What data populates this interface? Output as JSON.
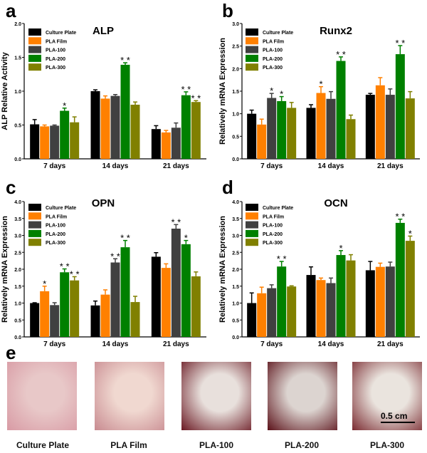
{
  "colors": {
    "Culture Plate": "#000000",
    "PLA Film": "#ff8000",
    "PLA-100": "#404040",
    "PLA-200": "#008000",
    "PLA-300": "#808000"
  },
  "chart_data": [
    {
      "panel": "a",
      "type": "bar",
      "title": "ALP",
      "ylabel": "ALP Relative Activity",
      "xlabel": "",
      "ylim": [
        0,
        2.0
      ],
      "yticks": [
        0.0,
        0.5,
        1.0,
        1.5,
        2.0
      ],
      "tick_decimals": 1,
      "categories": [
        "7 days",
        "14 days",
        "21 days"
      ],
      "legend_placement": "top-left",
      "series": [
        {
          "name": "Culture Plate",
          "values": [
            0.51,
            1.0,
            0.44
          ],
          "errors": [
            0.07,
            0.02,
            0.05
          ],
          "sig": [
            "",
            "",
            ""
          ]
        },
        {
          "name": "PLA Film",
          "values": [
            0.48,
            0.89,
            0.39
          ],
          "errors": [
            0.02,
            0.04,
            0.03
          ],
          "sig": [
            "",
            "",
            ""
          ]
        },
        {
          "name": "PLA-100",
          "values": [
            0.49,
            0.93,
            0.46
          ],
          "errors": [
            0.01,
            0.02,
            0.07
          ],
          "sig": [
            "",
            "",
            ""
          ]
        },
        {
          "name": "PLA-200",
          "values": [
            0.71,
            1.39,
            0.94
          ],
          "errors": [
            0.04,
            0.03,
            0.05
          ],
          "sig": [
            "*",
            "**",
            "**"
          ]
        },
        {
          "name": "PLA-300",
          "values": [
            0.54,
            0.8,
            0.84
          ],
          "errors": [
            0.08,
            0.04,
            0.02
          ],
          "sig": [
            "",
            "",
            "**"
          ]
        }
      ]
    },
    {
      "panel": "b",
      "type": "bar",
      "title": "Runx2",
      "ylabel": "Relatively mRNA Expression",
      "xlabel": "",
      "ylim": [
        0,
        3.0
      ],
      "yticks": [
        0.0,
        0.5,
        1.0,
        1.5,
        2.0,
        2.5,
        3.0
      ],
      "tick_decimals": 1,
      "categories": [
        "7 days",
        "14 days",
        "21 days"
      ],
      "legend_placement": "top-left",
      "series": [
        {
          "name": "Culture Plate",
          "values": [
            1.0,
            1.13,
            1.42
          ],
          "errors": [
            0.08,
            0.07,
            0.03
          ],
          "sig": [
            "",
            "",
            ""
          ]
        },
        {
          "name": "PLA Film",
          "values": [
            0.76,
            1.46,
            1.63
          ],
          "errors": [
            0.12,
            0.14,
            0.17
          ],
          "sig": [
            "",
            "*",
            ""
          ]
        },
        {
          "name": "PLA-100",
          "values": [
            1.35,
            1.33,
            1.42
          ],
          "errors": [
            0.1,
            0.16,
            0.13
          ],
          "sig": [
            "*",
            "",
            ""
          ]
        },
        {
          "name": "PLA-200",
          "values": [
            1.28,
            2.17,
            2.32
          ],
          "errors": [
            0.1,
            0.09,
            0.19
          ],
          "sig": [
            "*",
            "**",
            "**"
          ]
        },
        {
          "name": "PLA-300",
          "values": [
            1.13,
            0.88,
            1.34
          ],
          "errors": [
            0.12,
            0.09,
            0.15
          ],
          "sig": [
            "",
            "",
            ""
          ]
        }
      ]
    },
    {
      "panel": "c",
      "type": "bar",
      "title": "OPN",
      "ylabel": "Relatively mRNA Expression",
      "xlabel": "",
      "ylim": [
        0,
        4.0
      ],
      "yticks": [
        0.0,
        0.5,
        1.0,
        1.5,
        2.0,
        2.5,
        3.0,
        3.5,
        4.0
      ],
      "tick_decimals": 1,
      "categories": [
        "7 days",
        "14 days",
        "21 days"
      ],
      "legend_placement": "top-left",
      "series": [
        {
          "name": "Culture Plate",
          "values": [
            1.0,
            0.93,
            2.37
          ],
          "errors": [
            0.01,
            0.13,
            0.12
          ],
          "sig": [
            "",
            "",
            ""
          ]
        },
        {
          "name": "PLA Film",
          "values": [
            1.35,
            1.25,
            2.04
          ],
          "errors": [
            0.15,
            0.14,
            0.12
          ],
          "sig": [
            "*",
            "",
            ""
          ]
        },
        {
          "name": "PLA-100",
          "values": [
            0.94,
            2.2,
            3.2
          ],
          "errors": [
            0.07,
            0.11,
            0.12
          ],
          "sig": [
            "",
            "**",
            "**"
          ]
        },
        {
          "name": "PLA-200",
          "values": [
            1.91,
            2.65,
            2.74
          ],
          "errors": [
            0.1,
            0.2,
            0.11
          ],
          "sig": [
            "**",
            "**",
            "*"
          ]
        },
        {
          "name": "PLA-300",
          "values": [
            1.67,
            1.03,
            1.79
          ],
          "errors": [
            0.11,
            0.17,
            0.13
          ],
          "sig": [
            "**",
            "",
            ""
          ]
        }
      ]
    },
    {
      "panel": "d",
      "type": "bar",
      "title": "OCN",
      "ylabel": "Relatively mRNA Expression",
      "xlabel": "",
      "ylim": [
        0,
        4.0
      ],
      "yticks": [
        0.0,
        0.5,
        1.0,
        1.5,
        2.0,
        2.5,
        3.0,
        3.5,
        4.0
      ],
      "tick_decimals": 1,
      "categories": [
        "7 days",
        "14 days",
        "21 days"
      ],
      "legend_placement": "top-left",
      "series": [
        {
          "name": "Culture Plate",
          "values": [
            1.0,
            1.83,
            1.97
          ],
          "errors": [
            0.3,
            0.24,
            0.26
          ],
          "sig": [
            "",
            "",
            ""
          ]
        },
        {
          "name": "PLA Film",
          "values": [
            1.29,
            1.68,
            2.07
          ],
          "errors": [
            0.18,
            0.06,
            0.11
          ],
          "sig": [
            "",
            "",
            ""
          ]
        },
        {
          "name": "PLA-100",
          "values": [
            1.44,
            1.59,
            2.08
          ],
          "errors": [
            0.1,
            0.15,
            0.13
          ],
          "sig": [
            "",
            "",
            ""
          ]
        },
        {
          "name": "PLA-200",
          "values": [
            2.08,
            2.42,
            3.37
          ],
          "errors": [
            0.15,
            0.13,
            0.11
          ],
          "sig": [
            "**",
            "*",
            "**"
          ]
        },
        {
          "name": "PLA-300",
          "values": [
            1.49,
            2.26,
            2.84
          ],
          "errors": [
            0.02,
            0.17,
            0.14
          ],
          "sig": [
            "",
            "",
            "*"
          ]
        }
      ]
    }
  ],
  "panel_e": {
    "letter": "e",
    "photos": [
      {
        "label": "Culture Plate",
        "tone": [
          "#e8c8c8",
          "#d89aa4"
        ]
      },
      {
        "label": "PLA Film",
        "tone": [
          "#f0d8d0",
          "#c88a90"
        ]
      },
      {
        "label": "PLA-100",
        "tone": [
          "#e8e0dc",
          "#6a1822"
        ]
      },
      {
        "label": "PLA-200",
        "tone": [
          "#dcd4d0",
          "#5a1018"
        ]
      },
      {
        "label": "PLA-300",
        "tone": [
          "#eae4de",
          "#7a2a30"
        ]
      }
    ],
    "scale_bar": "0.5 cm"
  }
}
